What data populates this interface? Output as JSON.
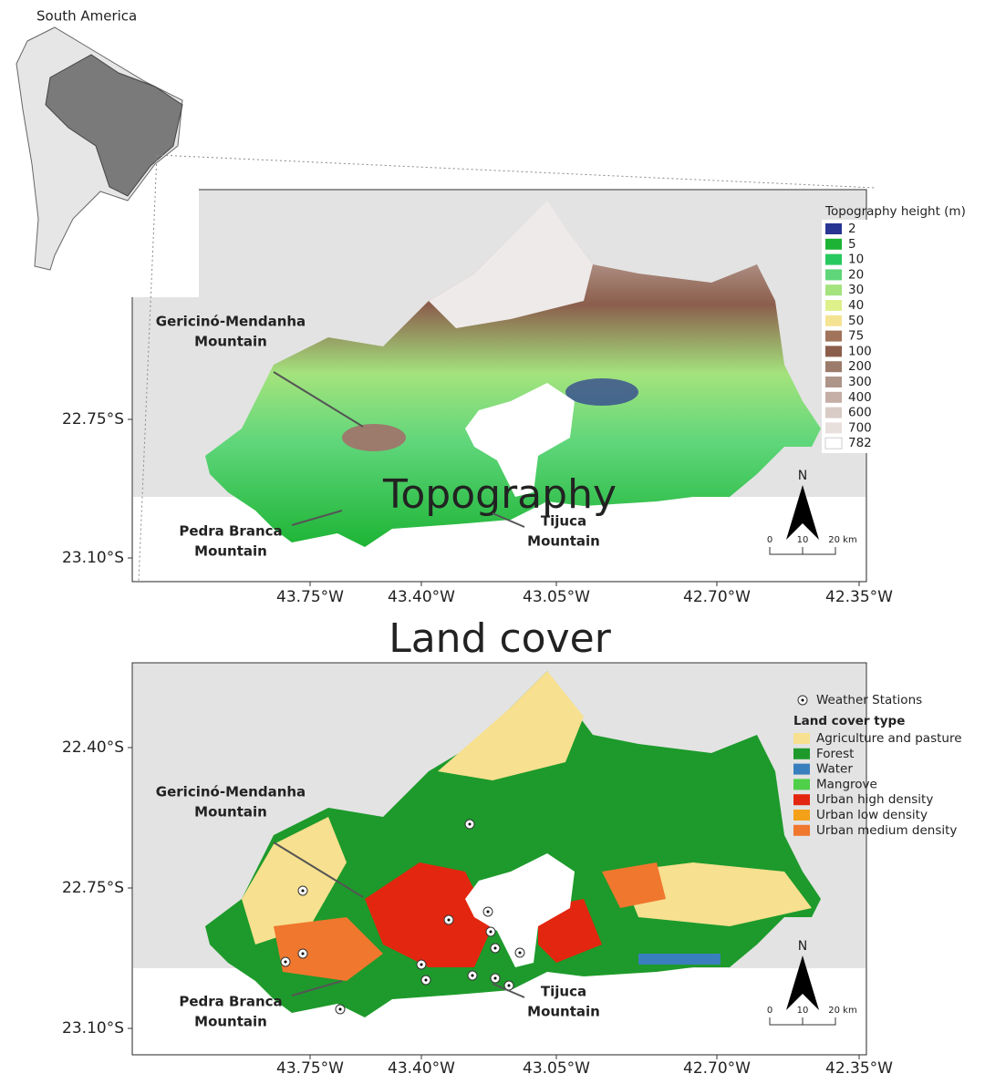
{
  "inset": {
    "label": "South America"
  },
  "panels": [
    {
      "title": "Topography",
      "y_labels": [
        "22.75°S",
        "23.10°S"
      ],
      "x_labels": [
        "43.75°W",
        "43.40°W",
        "43.05°W",
        "42.70°W",
        "42.35°W"
      ],
      "legend": {
        "title": "Topography height (m)",
        "items": [
          {
            "label": "2",
            "color": "#283593"
          },
          {
            "label": "5",
            "color": "#1db435"
          },
          {
            "label": "10",
            "color": "#27c95e"
          },
          {
            "label": "20",
            "color": "#5fd67a"
          },
          {
            "label": "30",
            "color": "#a4e37d"
          },
          {
            "label": "40",
            "color": "#def08a"
          },
          {
            "label": "50",
            "color": "#f5e394"
          },
          {
            "label": "75",
            "color": "#a0735a"
          },
          {
            "label": "100",
            "color": "#8b5e4c"
          },
          {
            "label": "200",
            "color": "#9c7b6c"
          },
          {
            "label": "300",
            "color": "#ad958a"
          },
          {
            "label": "400",
            "color": "#c4aea6"
          },
          {
            "label": "600",
            "color": "#d9cbc6"
          },
          {
            "label": "700",
            "color": "#e8e0dd"
          },
          {
            "label": "782",
            "color": "#ffffff"
          }
        ]
      },
      "annotations": [
        {
          "lines": [
            "Gericinó-Mendanha",
            "Mountain"
          ]
        },
        {
          "lines": [
            "Pedra Branca",
            "Mountain"
          ]
        },
        {
          "lines": [
            "Tijuca",
            "Mountain"
          ]
        }
      ],
      "scale_bar": [
        "0",
        "10",
        "20 km"
      ],
      "north": "N"
    },
    {
      "title": "Land cover",
      "y_labels": [
        "22.40°S",
        "22.75°S",
        "23.10°S"
      ],
      "x_labels": [
        "43.75°W",
        "43.40°W",
        "43.05°W",
        "42.70°W",
        "42.35°W"
      ],
      "legend": {
        "stations": "Weather Stations",
        "title": "Land cover type",
        "items": [
          {
            "label": "Agriculture and pasture",
            "color": "#f7e08f"
          },
          {
            "label": "Forest",
            "color": "#1d9a2b"
          },
          {
            "label": "Water",
            "color": "#3a7fbd"
          },
          {
            "label": "Mangrove",
            "color": "#4fcf4a"
          },
          {
            "label": "Urban high density",
            "color": "#e3260f"
          },
          {
            "label": "Urban low density",
            "color": "#f4a019"
          },
          {
            "label": "Urban medium density",
            "color": "#f0772e"
          }
        ]
      },
      "annotations": [
        {
          "lines": [
            "Gericinó-Mendanha",
            "Mountain"
          ]
        },
        {
          "lines": [
            "Pedra Branca",
            "Mountain"
          ]
        },
        {
          "lines": [
            "Tijuca",
            "Mountain"
          ]
        }
      ],
      "scale_bar": [
        "0",
        "10",
        "20 km"
      ],
      "north": "N"
    }
  ]
}
